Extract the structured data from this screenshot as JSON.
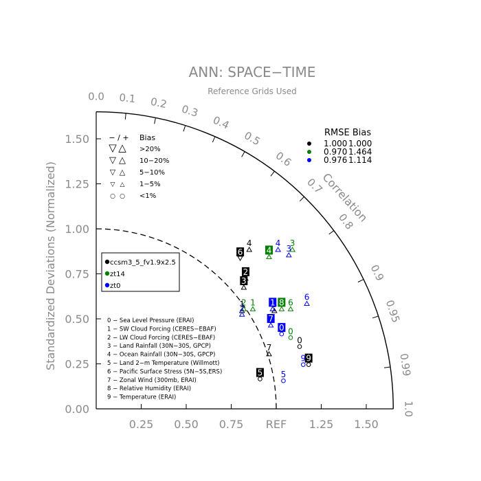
{
  "chart_data": {
    "type": "scatter",
    "subtype": "taylor-diagram",
    "title": "ANN: SPACE−TIME",
    "subtitle": "Reference Grids Used",
    "ylabel": "Standardized Deviations (Normalized)",
    "arc_label": "Correlation",
    "ref_label": "REF",
    "xlim": [
      0,
      1.65
    ],
    "ylim": [
      0,
      1.65
    ],
    "x_ticks": [
      "0.25",
      "0.50",
      "0.75",
      "REF",
      "1.25",
      "1.50"
    ],
    "y_ticks": [
      "0.00",
      "0.25",
      "0.50",
      "0.75",
      "1.00",
      "1.25",
      "1.50"
    ],
    "corr_ticks": [
      "0.0",
      "0.1",
      "0.2",
      "0.3",
      "0.4",
      "0.5",
      "0.6",
      "0.7",
      "0.8",
      "0.9",
      "0.95",
      "0.99",
      "1.0"
    ],
    "bias_legend": {
      "header_symbols": "− / +",
      "header_label": "Bias",
      "rows": [
        {
          "neg": "▽",
          "pos": "△",
          "label": ">20%"
        },
        {
          "neg": "▽",
          "pos": "△",
          "label": "10−20%"
        },
        {
          "neg": "▽",
          "pos": "△",
          "label": "5−10%"
        },
        {
          "neg": "▽",
          "pos": "△",
          "label": "1−5%"
        },
        {
          "neg": "○",
          "pos": "○",
          "label": "<1%"
        }
      ]
    },
    "rmse_legend": {
      "header": "RMSE Bias",
      "rows": [
        {
          "color": "#000000",
          "rmse": "1.000",
          "bias": "1.000"
        },
        {
          "color": "#008000",
          "rmse": "0.970",
          "bias": "1.464"
        },
        {
          "color": "#0000ff",
          "rmse": "0.976",
          "bias": "1.114"
        }
      ]
    },
    "series": [
      {
        "name": "ccsm3_5_fv1.9x2.5",
        "color": "#000000"
      },
      {
        "name": "zt14",
        "color": "#008000"
      },
      {
        "name": "zt0",
        "color": "#0000ff"
      }
    ],
    "variables": [
      "0 − Sea Level Pressure (ERAI)",
      "1 − SW Cloud Forcing (CERES−EBAF)",
      "2 − LW Cloud Forcing (CERES−EBAF)",
      "3 − Land Rainfall (30N−30S, GPCP)",
      "4 − Ocean Rainfall (30N−30S, GPCP)",
      "5 − Land 2−m Temperature (Willmott)",
      "6 − Pacific Surface Stress (5N−5S,ERS)",
      "7 − Zonal Wind (300mb, ERAI)",
      "8 − Relative Humidity (ERAI)",
      "9 − Temperature (ERAI)"
    ],
    "points": [
      {
        "series": 0,
        "label": "0",
        "x": 1.13,
        "y": 0.38,
        "boxed": false,
        "marker": "circle"
      },
      {
        "series": 0,
        "label": "1",
        "x": 0.81,
        "y": 0.58,
        "boxed": false,
        "marker": "triangle"
      },
      {
        "series": 0,
        "label": "2",
        "x": 0.83,
        "y": 0.76,
        "boxed": true,
        "marker": "triangle"
      },
      {
        "series": 0,
        "label": "3",
        "x": 0.82,
        "y": 0.71,
        "boxed": true,
        "marker": "triangle"
      },
      {
        "series": 0,
        "label": "4",
        "x": 0.85,
        "y": 0.92,
        "boxed": false,
        "marker": "triangle"
      },
      {
        "series": 0,
        "label": "5",
        "x": 0.91,
        "y": 0.2,
        "boxed": true,
        "marker": "circle"
      },
      {
        "series": 0,
        "label": "6",
        "x": 0.8,
        "y": 0.87,
        "boxed": true,
        "marker": "triangle-down"
      },
      {
        "series": 0,
        "label": "7",
        "x": 0.96,
        "y": 0.34,
        "boxed": false,
        "marker": "triangle"
      },
      {
        "series": 0,
        "label": "8",
        "x": 0.99,
        "y": 0.58,
        "boxed": false,
        "marker": "triangle"
      },
      {
        "series": 0,
        "label": "9",
        "x": 1.18,
        "y": 0.28,
        "boxed": true,
        "marker": "circle"
      },
      {
        "series": 1,
        "label": "0",
        "x": 1.08,
        "y": 0.43,
        "boxed": false,
        "marker": "circle"
      },
      {
        "series": 1,
        "label": "1",
        "x": 0.87,
        "y": 0.59,
        "boxed": false,
        "marker": "triangle"
      },
      {
        "series": 1,
        "label": "2",
        "x": 0.82,
        "y": 0.59,
        "boxed": false,
        "marker": "triangle"
      },
      {
        "series": 1,
        "label": "3",
        "x": 1.09,
        "y": 0.92,
        "boxed": false,
        "marker": "triangle"
      },
      {
        "series": 1,
        "label": "4",
        "x": 0.96,
        "y": 0.88,
        "boxed": true,
        "marker": "triangle"
      },
      {
        "series": 1,
        "label": "6",
        "x": 1.08,
        "y": 0.59,
        "boxed": false,
        "marker": "triangle"
      },
      {
        "series": 1,
        "label": "8",
        "x": 1.03,
        "y": 0.59,
        "boxed": true,
        "marker": "triangle"
      },
      {
        "series": 2,
        "label": "0",
        "x": 1.03,
        "y": 0.45,
        "boxed": true,
        "marker": "circle"
      },
      {
        "series": 2,
        "label": "1",
        "x": 0.98,
        "y": 0.59,
        "boxed": true,
        "marker": "triangle"
      },
      {
        "series": 2,
        "label": "2",
        "x": 0.81,
        "y": 0.56,
        "boxed": false,
        "marker": "triangle"
      },
      {
        "series": 2,
        "label": "3",
        "x": 1.07,
        "y": 0.89,
        "boxed": false,
        "marker": "triangle"
      },
      {
        "series": 2,
        "label": "4",
        "x": 1.01,
        "y": 0.92,
        "boxed": false,
        "marker": "triangle"
      },
      {
        "series": 2,
        "label": "5",
        "x": 1.04,
        "y": 0.19,
        "boxed": false,
        "marker": "circle"
      },
      {
        "series": 2,
        "label": "6",
        "x": 1.17,
        "y": 0.62,
        "boxed": false,
        "marker": "triangle"
      },
      {
        "series": 2,
        "label": "7",
        "x": 0.97,
        "y": 0.5,
        "boxed": true,
        "marker": "triangle"
      },
      {
        "series": 2,
        "label": "9",
        "x": 1.15,
        "y": 0.28,
        "boxed": false,
        "marker": "circle"
      }
    ]
  }
}
